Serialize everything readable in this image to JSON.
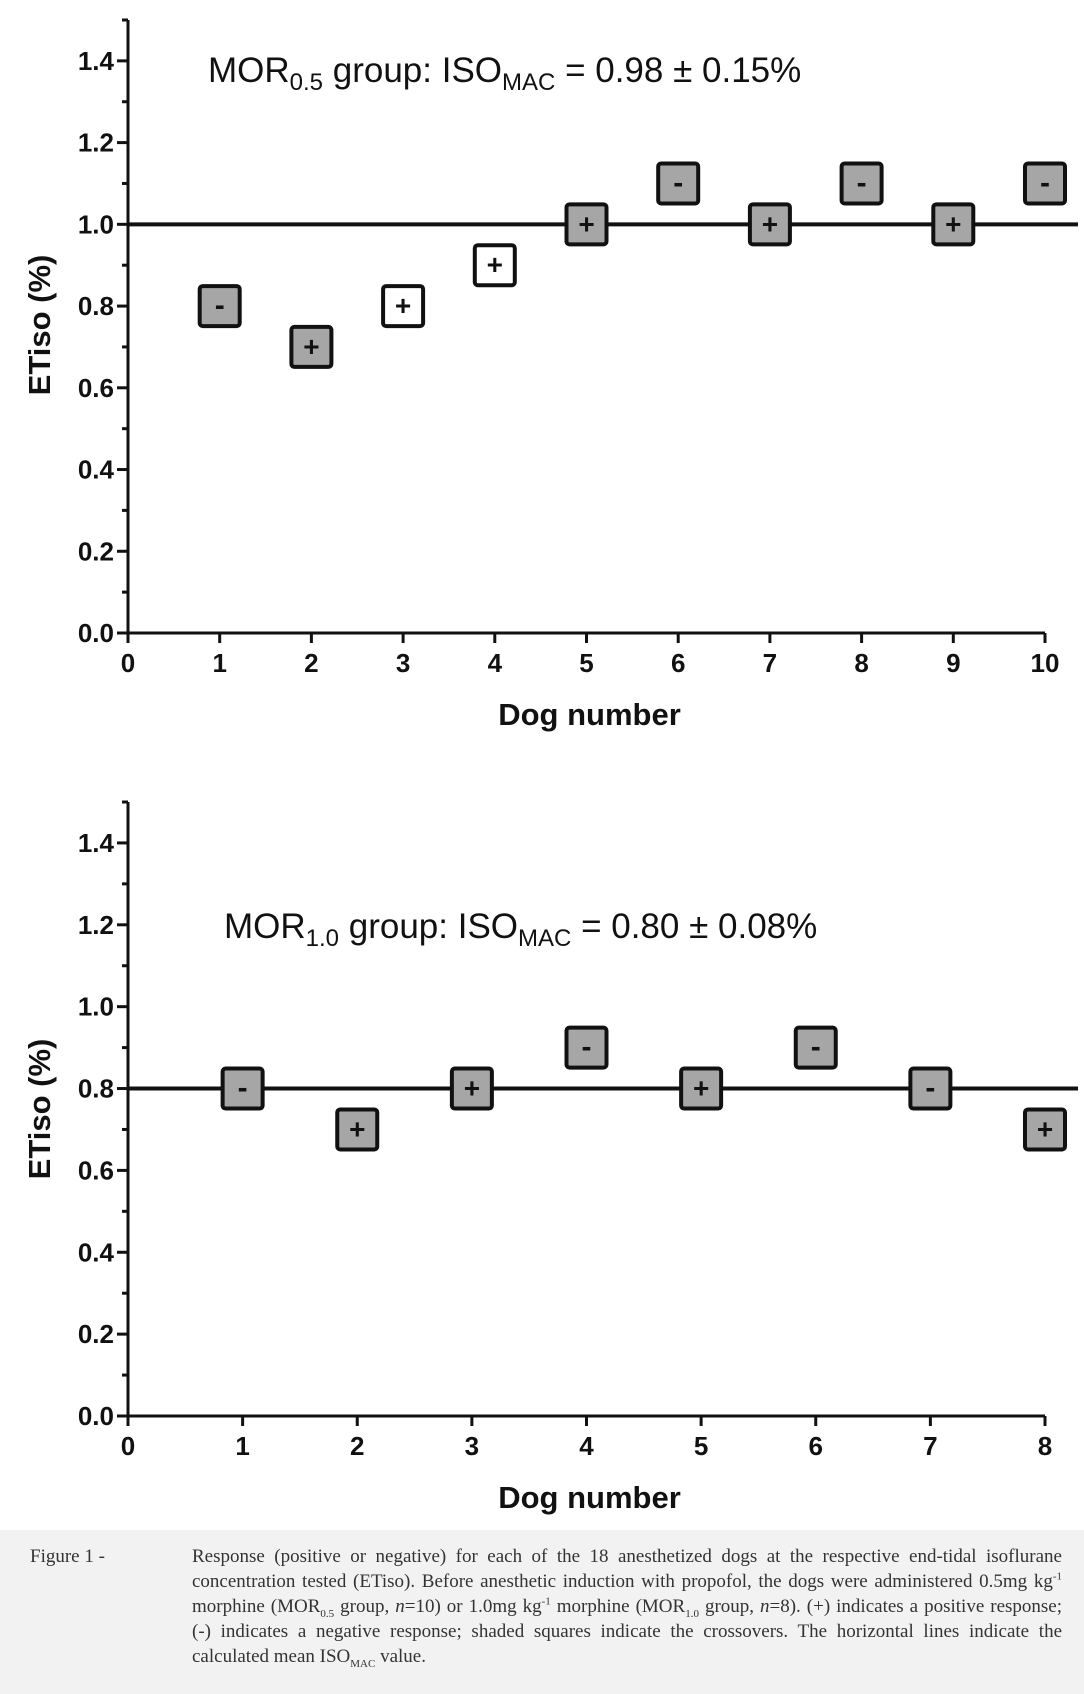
{
  "chart_data": [
    {
      "type": "scatter",
      "annotation": {
        "pre": "MOR",
        "sub1": "0.5",
        "mid": " group: ISO",
        "sub2": "MAC",
        "post": " = 0.98 ± 0.15%"
      },
      "xlabel": "Dog number",
      "ylabel": "ETiso (%)",
      "xlim": [
        0,
        10
      ],
      "ylim": [
        0.0,
        1.5
      ],
      "x_ticks": [
        0,
        1,
        2,
        3,
        4,
        5,
        6,
        7,
        8,
        9,
        10
      ],
      "y_ticks": [
        0.0,
        0.2,
        0.4,
        0.6,
        0.8,
        1.0,
        1.2,
        1.4
      ],
      "y_tick_labels": [
        "0.0",
        "0.2",
        "0.4",
        "0.6",
        "0.8",
        "1.0",
        "1.2",
        "1.4"
      ],
      "reference_line": 1.0,
      "points": [
        {
          "x": 1,
          "y": 0.8,
          "response": "-",
          "shaded": true
        },
        {
          "x": 2,
          "y": 0.7,
          "response": "+",
          "shaded": true
        },
        {
          "x": 3,
          "y": 0.8,
          "response": "+",
          "shaded": false
        },
        {
          "x": 4,
          "y": 0.9,
          "response": "+",
          "shaded": false
        },
        {
          "x": 5,
          "y": 1.0,
          "response": "+",
          "shaded": true
        },
        {
          "x": 6,
          "y": 1.1,
          "response": "-",
          "shaded": true
        },
        {
          "x": 7,
          "y": 1.0,
          "response": "+",
          "shaded": true
        },
        {
          "x": 8,
          "y": 1.1,
          "response": "-",
          "shaded": true
        },
        {
          "x": 9,
          "y": 1.0,
          "response": "+",
          "shaded": true
        },
        {
          "x": 10,
          "y": 1.1,
          "response": "-",
          "shaded": true
        }
      ]
    },
    {
      "type": "scatter",
      "annotation": {
        "pre": "MOR",
        "sub1": "1.0",
        "mid": " group: ISO",
        "sub2": "MAC",
        "post": " = 0.80 ± 0.08%"
      },
      "xlabel": "Dog number",
      "ylabel": "ETiso (%)",
      "xlim": [
        0,
        8
      ],
      "ylim": [
        0.0,
        1.5
      ],
      "x_ticks": [
        0,
        1,
        2,
        3,
        4,
        5,
        6,
        7,
        8
      ],
      "y_ticks": [
        0.0,
        0.2,
        0.4,
        0.6,
        0.8,
        1.0,
        1.2,
        1.4
      ],
      "y_tick_labels": [
        "0.0",
        "0.2",
        "0.4",
        "0.6",
        "0.8",
        "1.0",
        "1.2",
        "1.4"
      ],
      "reference_line": 0.8,
      "points": [
        {
          "x": 1,
          "y": 0.8,
          "response": "-",
          "shaded": true
        },
        {
          "x": 2,
          "y": 0.7,
          "response": "+",
          "shaded": true
        },
        {
          "x": 3,
          "y": 0.8,
          "response": "+",
          "shaded": true
        },
        {
          "x": 4,
          "y": 0.9,
          "response": "-",
          "shaded": true
        },
        {
          "x": 5,
          "y": 0.8,
          "response": "+",
          "shaded": true
        },
        {
          "x": 6,
          "y": 0.9,
          "response": "-",
          "shaded": true
        },
        {
          "x": 7,
          "y": 0.8,
          "response": "-",
          "shaded": true
        },
        {
          "x": 8,
          "y": 0.7,
          "response": "+",
          "shaded": true
        }
      ]
    }
  ],
  "colors": {
    "shaded_fill": "#a6a6a6",
    "open_fill": "#ffffff",
    "ink": "#111111"
  },
  "caption": {
    "label": "Figure 1 -",
    "t1": "Response (positive or negative) for each of the 18 anesthetized dogs at the respective end-tidal isoflurane concentration tested (ETiso). Before anesthetic induction with propofol, the dogs were administered 0.5mg kg",
    "sup1": "-1",
    "t2": " morphine (MOR",
    "sub1": "0.5",
    "t3": " group, ",
    "n1": "n",
    "t4": "=10) or 1.0mg kg",
    "sup2": "-1",
    "t5": " morphine (MOR",
    "sub2": "1.0",
    "t6": " group, ",
    "n2": "n",
    "t7": "=8). (+) indicates a positive response; (-) indicates a negative response; shaded squares indicate the crossovers. The horizontal lines indicate the calculated mean ISO",
    "sub3": "MAC",
    "t8": " value."
  }
}
